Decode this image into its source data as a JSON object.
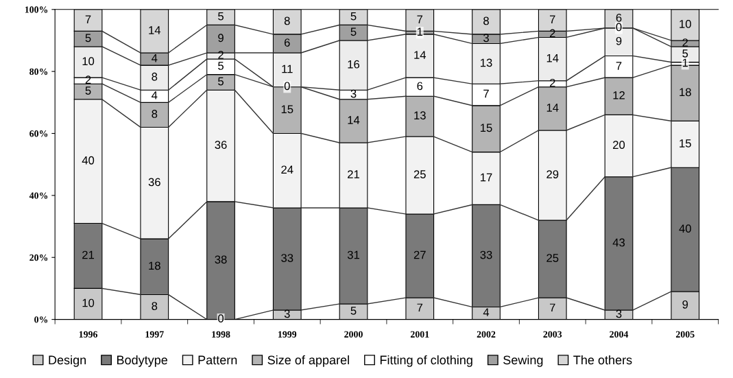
{
  "chart_data": {
    "type": "bar",
    "stacked": true,
    "data_labels": true,
    "grid": false,
    "legend": "bottom",
    "categories": [
      "1996",
      "1997",
      "1998",
      "1999",
      "2000",
      "2001",
      "2002",
      "2003",
      "2004",
      "2005"
    ],
    "ylim": [
      0,
      100
    ],
    "yticks": [
      {
        "value": 0,
        "label": "0%"
      },
      {
        "value": 20,
        "label": "20%"
      },
      {
        "value": 40,
        "label": "40%"
      },
      {
        "value": 60,
        "label": "60%"
      },
      {
        "value": 80,
        "label": "80%"
      },
      {
        "value": 100,
        "label": "100%"
      }
    ],
    "series": [
      {
        "name": "Design",
        "color": "#c8c8c8",
        "values": [
          10,
          8,
          0,
          3,
          5,
          7,
          4,
          7,
          3,
          9
        ]
      },
      {
        "name": "Bodytype",
        "color": "#7a7a7a",
        "values": [
          21,
          18,
          38,
          33,
          31,
          27,
          33,
          25,
          43,
          40
        ]
      },
      {
        "name": "Pattern",
        "color": "#f2f2f2",
        "values": [
          40,
          36,
          36,
          24,
          21,
          25,
          17,
          29,
          20,
          15
        ]
      },
      {
        "name": "Size of apparel",
        "color": "#b4b4b4",
        "values": [
          5,
          8,
          5,
          15,
          14,
          13,
          15,
          14,
          12,
          18
        ]
      },
      {
        "name": "Fitting of clothing",
        "color": "#ffffff",
        "values": [
          2,
          4,
          5,
          0,
          3,
          6,
          7,
          2,
          7,
          1
        ]
      },
      {
        "color": "#ececec",
        "values": [
          10,
          8,
          2,
          11,
          16,
          14,
          13,
          14,
          9,
          5
        ]
      },
      {
        "name": "Sewing",
        "color": "#a0a0a0",
        "values": [
          5,
          4,
          9,
          6,
          5,
          1,
          3,
          2,
          0,
          2
        ]
      },
      {
        "name": "The others",
        "color": "#d6d6d6",
        "values": [
          7,
          14,
          5,
          8,
          5,
          7,
          8,
          7,
          6,
          10
        ]
      }
    ]
  }
}
